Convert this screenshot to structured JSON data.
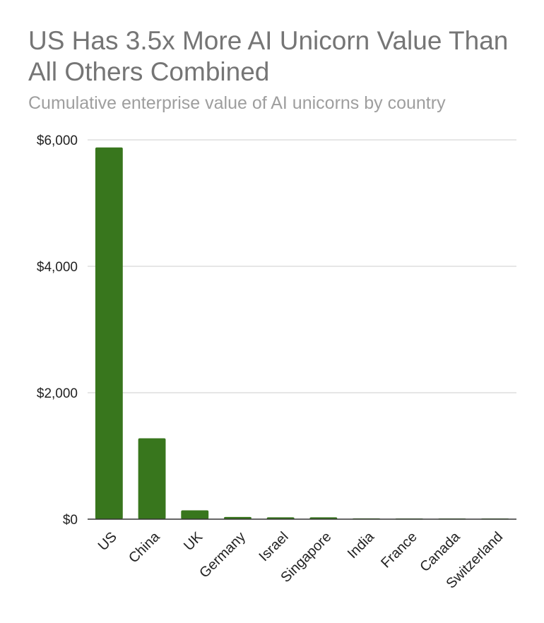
{
  "chart_data": {
    "type": "bar",
    "title": "US Has 3.5x More AI Unicorn Value Than All Others Combined",
    "subtitle": "Cumulative enterprise value of AI unicorns by country",
    "xlabel": "",
    "ylabel": "",
    "categories": [
      "US",
      "China",
      "UK",
      "Germany",
      "Israel",
      "Singapore",
      "India",
      "France",
      "Canada",
      "Switzerland"
    ],
    "values": [
      5880,
      1280,
      140,
      35,
      30,
      30,
      12,
      10,
      8,
      8
    ],
    "ylim": [
      0,
      6000
    ],
    "yticks": [
      0,
      2000,
      4000,
      6000
    ],
    "ytick_labels": [
      "$0",
      "$2,000",
      "$4,000",
      "$6,000"
    ],
    "grid": true,
    "legend": "none",
    "bar_color": "#38761d",
    "gridline_color": "#cccccc",
    "axis_color": "#333333"
  }
}
